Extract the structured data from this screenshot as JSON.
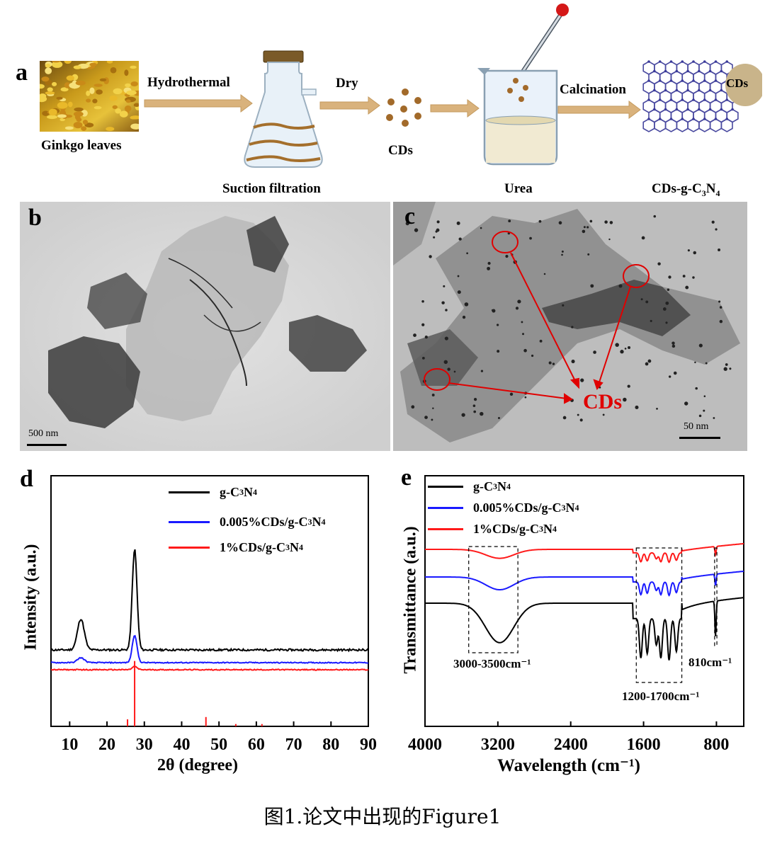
{
  "colors": {
    "black_series": "#000000",
    "blue_series": "#1a1aff",
    "red_series": "#ff1a1a",
    "arrow": "#d9b27c",
    "cds_dot": "#a26a2a",
    "ann_red": "#e00000"
  },
  "panel_a": {
    "letter": "a",
    "ginkgo_label": "Ginkgo leaves",
    "hydrothermal": "Hydrothermal",
    "suction": "Suction filtration",
    "dry": "Dry",
    "cds": "CDs",
    "urea": "Urea",
    "calcination": "Calcination",
    "cds_bubble": "CDs",
    "product_prefix": "CDs-g-C",
    "product_sub1": "3",
    "product_mid": "N",
    "product_sub2": "4"
  },
  "panel_b": {
    "letter": "b",
    "scale": "500 nm"
  },
  "panel_c": {
    "letter": "c",
    "scale": "50 nm",
    "annotation": "CDs"
  },
  "chart_data": [
    {
      "panel": "d",
      "type": "line",
      "title": "",
      "xlabel": "2θ (degree)",
      "ylabel": "Intensity (a.u.)",
      "xlim": [
        5,
        90
      ],
      "x_ticks": [
        "10",
        "20",
        "30",
        "40",
        "50",
        "60",
        "70",
        "80",
        "90"
      ],
      "legend": [
        {
          "prefix": "g-C",
          "s1": "3",
          "mid": "N",
          "s2": "4",
          "color": "#000000"
        },
        {
          "prefix": "0.005%CDs/g-C",
          "s1": "3",
          "mid": "N",
          "s2": "4",
          "color": "#1a1aff"
        },
        {
          "prefix": "1%CDs/g-C",
          "s1": "3",
          "mid": "N",
          "s2": "4",
          "color": "#ff1a1a"
        }
      ],
      "series": [
        {
          "name": "g-C3N4",
          "peaks": [
            {
              "x": 13.0,
              "h": 0.19
            },
            {
              "x": 27.4,
              "h": 0.62
            }
          ],
          "baseline": 0.0
        },
        {
          "name": "0.005%CDs/g-C3N4",
          "peaks": [
            {
              "x": 13.0,
              "h": 0.03
            },
            {
              "x": 27.4,
              "h": 0.17
            }
          ],
          "baseline": 0.0
        },
        {
          "name": "1%CDs/g-C3N4",
          "peaks": [
            {
              "x": 27.4,
              "h": 0.02
            }
          ],
          "baseline": 0.0
        }
      ],
      "reference_sticks": [
        {
          "x": 25.5,
          "h": 0.03
        },
        {
          "x": 27.4,
          "h": 0.28
        },
        {
          "x": 46.5,
          "h": 0.04
        },
        {
          "x": 54.5,
          "h": 0.01
        },
        {
          "x": 61.5,
          "h": 0.01
        }
      ]
    },
    {
      "panel": "e",
      "type": "line",
      "title": "",
      "xlabel": "Wavelength (cm⁻¹)",
      "ylabel": "Transmittance (a.u.)",
      "xlim": [
        4000,
        500
      ],
      "x_ticks": [
        "4000",
        "3200",
        "2400",
        "1600",
        "800"
      ],
      "legend": [
        {
          "prefix": "g-C",
          "s1": "3",
          "mid": "N",
          "s2": "4",
          "color": "#000000"
        },
        {
          "prefix": "0.005%CDs/g-C",
          "s1": "3",
          "mid": "N",
          "s2": "4",
          "color": "#1a1aff"
        },
        {
          "prefix": "1%CDs/g-C",
          "s1": "3",
          "mid": "N",
          "s2": "4",
          "color": "#ff1a1a"
        }
      ],
      "annotations": [
        "3000-3500cm⁻¹",
        "1200-1700cm⁻¹",
        "810cm⁻¹"
      ]
    }
  ],
  "caption": "图1.论文中出现的Figure1"
}
